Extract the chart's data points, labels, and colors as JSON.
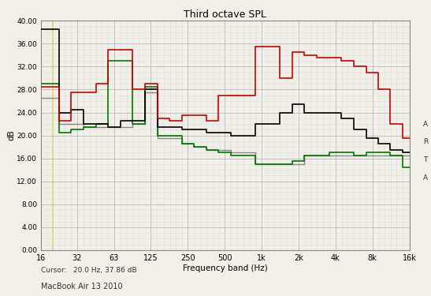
{
  "title": "Third octave SPL",
  "xlabel": "Frequency band (Hz)",
  "ylabel": "dB",
  "ylim": [
    0.0,
    40.0
  ],
  "yticks": [
    0.0,
    4.0,
    8.0,
    12.0,
    16.0,
    20.0,
    24.0,
    28.0,
    32.0,
    36.0,
    40.0
  ],
  "freq_labels": [
    "16",
    "32",
    "63",
    "125",
    "250",
    "500",
    "1k",
    "2k",
    "4k",
    "8k",
    "16k"
  ],
  "freq_values": [
    16,
    31.5,
    63,
    125,
    250,
    500,
    1000,
    2000,
    4000,
    8000,
    16000
  ],
  "cursor_text": "Cursor:   20.0 Hz, 37.86 dB",
  "device_text": "MacBook Air 13 2010",
  "arta_text": "A\nR\nT\nA",
  "background_color": "#f0f0e8",
  "grid_color_major": "#bbbbbb",
  "grid_color_minor": "#dddddd",
  "cursor_line_color": "#d8d870",
  "lines": {
    "black": {
      "color": "#000000",
      "linewidth": 1.2,
      "freqs": [
        16,
        20,
        25,
        31.5,
        40,
        50,
        63,
        80,
        100,
        125,
        160,
        200,
        250,
        315,
        400,
        500,
        630,
        800,
        1000,
        1250,
        1600,
        2000,
        2500,
        3150,
        4000,
        5000,
        6300,
        8000,
        10000,
        12500,
        16000
      ],
      "values": [
        38.5,
        38.5,
        24.0,
        24.5,
        22.0,
        22.0,
        21.5,
        22.5,
        22.5,
        28.0,
        21.5,
        21.5,
        21.0,
        21.0,
        20.5,
        20.5,
        20.0,
        20.0,
        22.0,
        22.0,
        24.0,
        25.5,
        24.0,
        24.0,
        24.0,
        23.0,
        21.0,
        19.5,
        18.5,
        17.5,
        17.0
      ]
    },
    "red": {
      "color": "#cc0000",
      "linewidth": 1.2,
      "freqs": [
        16,
        20,
        25,
        31.5,
        40,
        50,
        63,
        80,
        100,
        125,
        160,
        200,
        250,
        315,
        400,
        500,
        630,
        800,
        1000,
        1250,
        1600,
        2000,
        2500,
        3150,
        4000,
        5000,
        6300,
        8000,
        10000,
        12500,
        16000
      ],
      "values": [
        28.5,
        28.5,
        22.5,
        27.5,
        27.5,
        29.0,
        35.0,
        35.0,
        28.0,
        29.0,
        23.0,
        22.5,
        23.5,
        23.5,
        22.5,
        27.0,
        27.0,
        27.0,
        35.5,
        35.5,
        30.0,
        34.5,
        34.0,
        33.5,
        33.5,
        33.0,
        32.0,
        31.0,
        28.0,
        22.0,
        19.5
      ]
    },
    "green": {
      "color": "#007700",
      "linewidth": 1.2,
      "freqs": [
        16,
        20,
        25,
        31.5,
        40,
        50,
        63,
        80,
        100,
        125,
        160,
        200,
        250,
        315,
        400,
        500,
        630,
        800,
        1000,
        1250,
        1600,
        2000,
        2500,
        3150,
        4000,
        5000,
        6300,
        8000,
        10000,
        12500,
        16000
      ],
      "values": [
        29.0,
        29.0,
        20.5,
        21.0,
        21.5,
        22.0,
        33.0,
        33.0,
        22.0,
        28.5,
        20.0,
        20.0,
        18.5,
        18.0,
        17.5,
        17.0,
        16.5,
        16.5,
        15.0,
        15.0,
        15.0,
        15.5,
        16.5,
        16.5,
        17.0,
        17.0,
        16.5,
        17.0,
        17.0,
        16.5,
        14.5
      ]
    },
    "gray": {
      "color": "#888888",
      "linewidth": 1.0,
      "freqs": [
        16,
        20,
        25,
        31.5,
        40,
        50,
        63,
        80,
        100,
        125,
        160,
        200,
        250,
        315,
        400,
        500,
        630,
        800,
        1000,
        1250,
        1600,
        2000,
        2500,
        3150,
        4000,
        5000,
        6300,
        8000,
        10000,
        12500,
        16000
      ],
      "values": [
        26.5,
        26.5,
        22.0,
        22.0,
        21.5,
        21.5,
        21.5,
        21.5,
        22.0,
        27.5,
        19.5,
        19.5,
        18.5,
        18.0,
        17.5,
        17.5,
        17.0,
        17.0,
        15.0,
        15.0,
        15.0,
        15.0,
        16.5,
        16.5,
        16.5,
        16.5,
        16.5,
        16.5,
        16.5,
        16.5,
        16.5
      ]
    }
  }
}
